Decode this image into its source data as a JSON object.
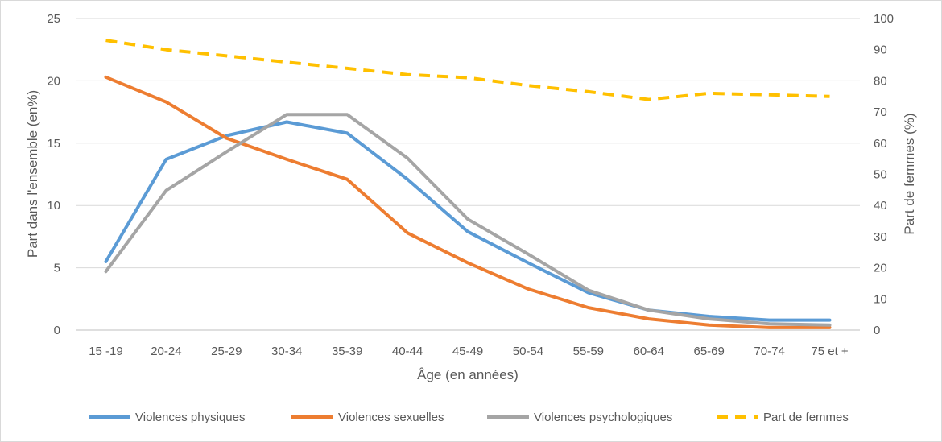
{
  "chart_data": {
    "type": "line",
    "categories": [
      "15 -19",
      "20-24",
      "25-29",
      "30-34",
      "35-39",
      "40-44",
      "45-49",
      "50-54",
      "55-59",
      "60-64",
      "65-69",
      "70-74",
      "75 et +"
    ],
    "xlabel": "Âge (en années)",
    "ylabel": "Part dans l'ensemble (en%)",
    "y2label": "Part de femmes (%)",
    "ylim": [
      0,
      25
    ],
    "y2lim": [
      0,
      100
    ],
    "yticks": [
      "0",
      "5",
      "10",
      "15",
      "20",
      "25"
    ],
    "y2ticks": [
      "0",
      "10",
      "20",
      "30",
      "40",
      "50",
      "60",
      "70",
      "80",
      "90",
      "100"
    ],
    "grid": true,
    "legend_position": "bottom",
    "series": [
      {
        "name": "Violences physiques",
        "axis": "left",
        "color": "#5B9BD5",
        "style": "solid",
        "values": [
          5.5,
          13.7,
          15.6,
          16.7,
          15.8,
          12.1,
          7.9,
          5.4,
          3.0,
          1.6,
          1.1,
          0.8,
          0.8
        ]
      },
      {
        "name": "Violences sexuelles",
        "axis": "left",
        "color": "#ED7D31",
        "style": "solid",
        "values": [
          20.3,
          18.3,
          15.4,
          13.7,
          12.1,
          7.8,
          5.4,
          3.3,
          1.8,
          0.9,
          0.4,
          0.2,
          0.2
        ]
      },
      {
        "name": "Violences psychologiques",
        "axis": "left",
        "color": "#A5A5A5",
        "style": "solid",
        "values": [
          4.7,
          11.2,
          14.3,
          17.3,
          17.3,
          13.8,
          8.9,
          6.1,
          3.2,
          1.6,
          0.9,
          0.5,
          0.4
        ]
      },
      {
        "name": "Part de femmes",
        "axis": "right",
        "color": "#FFC000",
        "style": "dashed",
        "values": [
          93,
          90,
          88,
          86,
          84,
          82,
          81,
          78.5,
          76.5,
          74,
          76,
          75.5,
          75
        ]
      }
    ]
  }
}
